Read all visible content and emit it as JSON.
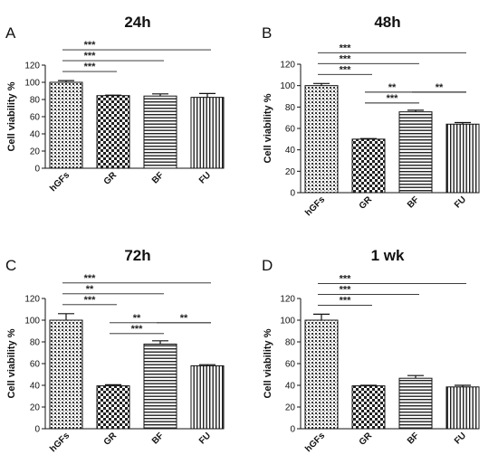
{
  "chart_data": [
    {
      "type": "bar",
      "title": "24h",
      "panel_letter": "A",
      "ylabel": "Cell viability %",
      "categories": [
        "hGFs",
        "GR",
        "BF",
        "FU"
      ],
      "values": [
        100,
        84.5,
        84,
        82.5
      ],
      "errors": [
        2,
        0.5,
        2.5,
        4.5
      ],
      "ylim": [
        0,
        120
      ],
      "yticks": [
        "0",
        "20",
        "40",
        "60",
        "80",
        "100",
        "120"
      ],
      "patterns": [
        "dotted",
        "checker",
        "hlines",
        "vlines"
      ],
      "significance": [
        {
          "from": 0,
          "to": 1,
          "label": "***"
        },
        {
          "from": 0,
          "to": 2,
          "label": "***"
        },
        {
          "from": 0,
          "to": 3,
          "label": "***"
        }
      ]
    },
    {
      "type": "bar",
      "title": "48h",
      "panel_letter": "B",
      "ylabel": "Cell viability %",
      "categories": [
        "hGFs",
        "GR",
        "BF",
        "FU"
      ],
      "values": [
        100,
        50,
        75.5,
        64
      ],
      "errors": [
        2,
        0.5,
        1.5,
        1.5
      ],
      "ylim": [
        0,
        120
      ],
      "yticks": [
        "0",
        "20",
        "40",
        "60",
        "80",
        "100",
        "120"
      ],
      "patterns": [
        "dotted",
        "checker",
        "hlines",
        "vlines"
      ],
      "significance": [
        {
          "from": 0,
          "to": 1,
          "label": "***"
        },
        {
          "from": 0,
          "to": 2,
          "label": "***"
        },
        {
          "from": 0,
          "to": 3,
          "label": "***"
        },
        {
          "from": 1,
          "to": 2,
          "label": "***"
        },
        {
          "from": 2,
          "to": 3,
          "label": "**"
        },
        {
          "from": 1,
          "to": 3,
          "label": "**"
        }
      ]
    },
    {
      "type": "bar",
      "title": "72h",
      "panel_letter": "C",
      "ylabel": "Cell viability %",
      "categories": [
        "hGFs",
        "GR",
        "BF",
        "FU"
      ],
      "values": [
        100,
        39.5,
        78,
        58
      ],
      "errors": [
        6,
        1,
        3,
        1
      ],
      "ylim": [
        0,
        120
      ],
      "yticks": [
        "0",
        "20",
        "40",
        "60",
        "80",
        "100",
        "120"
      ],
      "patterns": [
        "dotted",
        "checker",
        "hlines",
        "vlines"
      ],
      "significance": [
        {
          "from": 0,
          "to": 1,
          "label": "***"
        },
        {
          "from": 0,
          "to": 2,
          "label": "**"
        },
        {
          "from": 0,
          "to": 3,
          "label": "***"
        },
        {
          "from": 1,
          "to": 2,
          "label": "***"
        },
        {
          "from": 2,
          "to": 3,
          "label": "**"
        },
        {
          "from": 1,
          "to": 3,
          "label": "**"
        }
      ]
    },
    {
      "type": "bar",
      "title": "1 wk",
      "panel_letter": "D",
      "ylabel": "Cell viability %",
      "categories": [
        "hGFs",
        "GR",
        "BF",
        "FU"
      ],
      "values": [
        100,
        39.5,
        46.5,
        38.5
      ],
      "errors": [
        5.5,
        0.5,
        2.5,
        1.5
      ],
      "ylim": [
        0,
        120
      ],
      "yticks": [
        "0",
        "20",
        "40",
        "60",
        "80",
        "100",
        "120"
      ],
      "patterns": [
        "dotted",
        "checker",
        "hlines",
        "vlines"
      ],
      "significance": [
        {
          "from": 0,
          "to": 1,
          "label": "***"
        },
        {
          "from": 0,
          "to": 2,
          "label": "***"
        },
        {
          "from": 0,
          "to": 3,
          "label": "***"
        }
      ]
    }
  ]
}
